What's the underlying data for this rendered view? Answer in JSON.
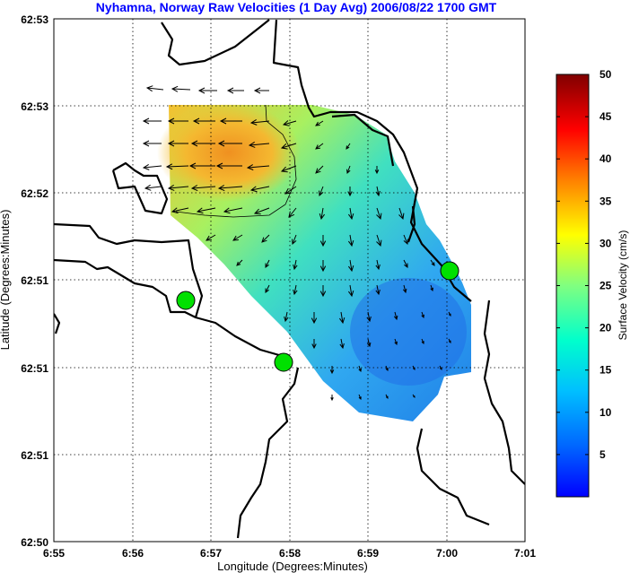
{
  "title": "Nyhamna, Norway Raw Velocities (1 Day Avg) 2006/08/22 1700 GMT",
  "xlabel": "Longitude (Degrees:Minutes)",
  "ylabel": "Latitude (Degrees:Minutes)",
  "colorbar_label": "Surface Velocity (cm/s)",
  "x_ticks": [
    "6:55",
    "6:56",
    "6:57",
    "6:58",
    "6:59",
    "7:00",
    "7:01"
  ],
  "y_ticks": [
    "62:53",
    "62:53",
    "62:52",
    "62:51",
    "62:51",
    "62:51",
    "62:50"
  ],
  "colorbar_ticks": [
    "5",
    "10",
    "15",
    "20",
    "25",
    "30",
    "35",
    "40",
    "45",
    "50"
  ],
  "colorbar_range": [
    0,
    50
  ],
  "colormap": "jet",
  "grid": "dotted",
  "site_marker_color": "#00e000",
  "site_count": 3
}
